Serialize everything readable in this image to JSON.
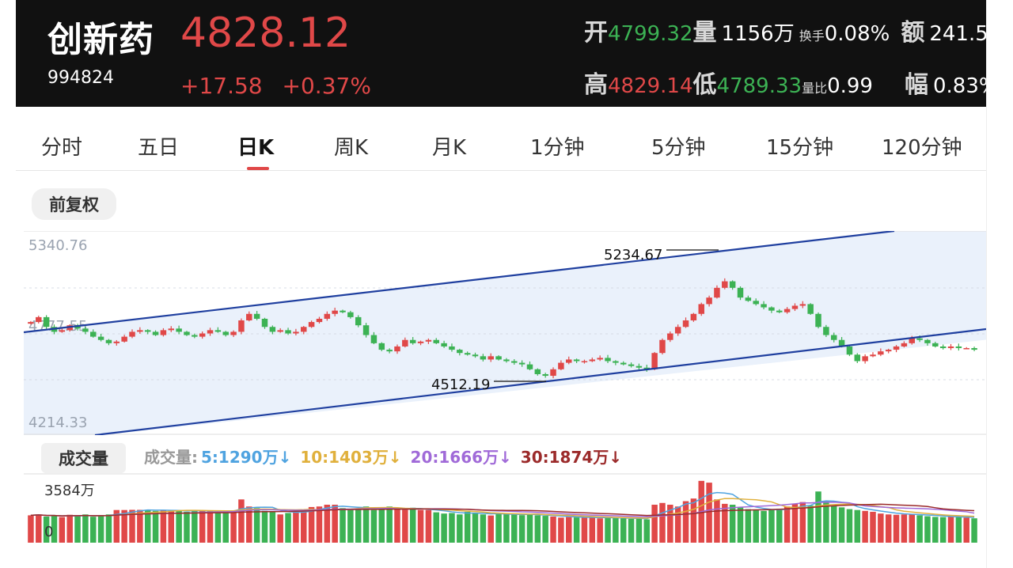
{
  "header": {
    "name": "创新药",
    "code": "994824",
    "price": "4828.12",
    "change": "+17.58",
    "change_pct": "+0.37%",
    "open_label": "开",
    "open_value": "4799.32",
    "volume_label": "量",
    "volume_value": "1156万",
    "turnover_label": "换手",
    "turnover_value": "0.08%",
    "amount_label": "额",
    "amount_value": "241.5",
    "high_label": "高",
    "high_value": "4829.14",
    "low_label": "低",
    "low_value": "4789.33",
    "volratio_label": "量比",
    "volratio_value": "0.99",
    "amp_label": "幅",
    "amp_value": "0.83%"
  },
  "tabs": [
    "分时",
    "五日",
    "日K",
    "周K",
    "月K",
    "1分钟",
    "5分钟",
    "15分钟",
    "120分钟"
  ],
  "active_tab": "日K",
  "adjust_label": "前复权",
  "volume_panel": {
    "label": "成交量",
    "title": "成交量:",
    "ma5": "5:1290万↓",
    "ma10": "10:1403万↓",
    "ma20": "20:1666万↓",
    "ma30": "30:1874万↓",
    "max_label": "3584万",
    "zero_label": "0"
  },
  "colors": {
    "up": "#e04848",
    "down": "#3cb254",
    "channel": "#1f3f9f",
    "channel_fill": "#eaf1fb",
    "ma5": "#4fa3e0",
    "ma10": "#e0b03c",
    "ma20": "#a06ad8",
    "ma30": "#9b2a2a"
  },
  "chart_data": {
    "type": "candlestick",
    "y_axis_labels": [
      "5340.76",
      "4777.55",
      "4214.33"
    ],
    "ylim": [
      4214.33,
      5340.76
    ],
    "annotations": [
      {
        "label": "5234.67",
        "value": 5234.67
      },
      {
        "label": "4512.19",
        "value": 4512.19
      }
    ],
    "closes": [
      4850,
      4880,
      4820,
      4790,
      4800,
      4830,
      4810,
      4790,
      4760,
      4740,
      4720,
      4730,
      4760,
      4790,
      4800,
      4790,
      4770,
      4800,
      4810,
      4790,
      4770,
      4760,
      4780,
      4800,
      4790,
      4770,
      4790,
      4860,
      4900,
      4870,
      4820,
      4790,
      4800,
      4780,
      4790,
      4820,
      4850,
      4870,
      4900,
      4920,
      4910,
      4880,
      4830,
      4770,
      4720,
      4680,
      4670,
      4700,
      4740,
      4720,
      4730,
      4740,
      4720,
      4700,
      4680,
      4660,
      4650,
      4640,
      4620,
      4640,
      4620,
      4610,
      4600,
      4590,
      4560,
      4530,
      4520,
      4560,
      4600,
      4620,
      4610,
      4610,
      4620,
      4630,
      4610,
      4600,
      4590,
      4580,
      4570,
      4560,
      4660,
      4740,
      4780,
      4820,
      4860,
      4900,
      4960,
      5000,
      5060,
      5100,
      5060,
      5000,
      4980,
      4960,
      4940,
      4920,
      4910,
      4930,
      4950,
      4960,
      4900,
      4820,
      4770,
      4740,
      4700,
      4650,
      4610,
      4640,
      4650,
      4670,
      4680,
      4700,
      4720,
      4750,
      4740,
      4720,
      4700,
      4690,
      4700,
      4690,
      4690,
      4680
    ]
  },
  "volume_data": {
    "max_value": 3584,
    "values": [
      1550,
      1600,
      1480,
      1520,
      1450,
      1580,
      1520,
      1600,
      1470,
      1500,
      1600,
      1850,
      1850,
      1860,
      1860,
      1850,
      1800,
      1850,
      1800,
      1830,
      1750,
      1850,
      1800,
      1780,
      1800,
      1760,
      1800,
      2450,
      2050,
      1960,
      1800,
      1760,
      1600,
      1680,
      1750,
      1850,
      2020,
      2050,
      2150,
      2150,
      1960,
      1850,
      1920,
      2050,
      1850,
      1900,
      2050,
      1920,
      1860,
      1980,
      1850,
      1850,
      1720,
      1650,
      1680,
      1600,
      1750,
      1680,
      1600,
      1540,
      1650,
      1650,
      1600,
      1560,
      1580,
      1550,
      1520,
      1480,
      1420,
      1450,
      1430,
      1420,
      1440,
      1380,
      1420,
      1390,
      1380,
      1350,
      1360,
      1320,
      2150,
      2250,
      2150,
      2050,
      2350,
      2500,
      3500,
      3400,
      2450,
      2200,
      2150,
      2000,
      1900,
      1850,
      1800,
      1850,
      1920,
      2050,
      2200,
      2300,
      2100,
      2900,
      2350,
      2100,
      2000,
      1900,
      1850,
      1800,
      1750,
      1650,
      1600,
      1580,
      1600,
      1620,
      1550,
      1500,
      1460,
      1450,
      1470,
      1450,
      1420,
      1380
    ]
  }
}
